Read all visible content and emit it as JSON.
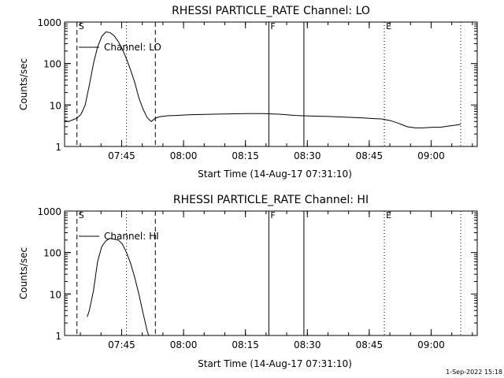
{
  "footer_timestamp": "1-Sep-2022 15:18",
  "chart_data": [
    {
      "type": "line",
      "title": "RHESSI PARTICLE_RATE Channel: LO",
      "xlabel": "Start Time (14-Aug-17 07:31:10)",
      "ylabel": "Counts/sec",
      "yscale": "log",
      "ylim": [
        1,
        1000
      ],
      "xlim_min": [
        0,
        100
      ],
      "x_unit": "minutes after 07:31:10",
      "x_ticks": [
        "07:45",
        "08:00",
        "08:15",
        "08:30",
        "08:45",
        "09:00"
      ],
      "x_tick_min": [
        13.83,
        28.83,
        43.83,
        58.83,
        73.83,
        88.83
      ],
      "y_ticks": [
        "1",
        "10",
        "100",
        "1000"
      ],
      "y_tick_values": [
        1,
        10,
        100,
        1000
      ],
      "legend": "Channel: LO",
      "legend_position": "top-left",
      "markers": [
        {
          "label": "S",
          "x_min": 3,
          "style": "dashed"
        },
        {
          "label": "",
          "x_min": 15,
          "style": "dotted"
        },
        {
          "label": "",
          "x_min": 22,
          "style": "dashed"
        },
        {
          "label": "F",
          "x_min": 49.5,
          "style": "solid"
        },
        {
          "label": "",
          "x_min": 58,
          "style": "solid"
        },
        {
          "label": "E",
          "x_min": 77.5,
          "style": "dotted"
        },
        {
          "label": "",
          "x_min": 96,
          "style": "dotted"
        }
      ],
      "series": [
        {
          "points": [
            [
              0,
              4.2
            ],
            [
              1,
              4.0
            ],
            [
              2,
              4.4
            ],
            [
              3,
              4.8
            ],
            [
              4,
              6
            ],
            [
              5,
              10
            ],
            [
              6,
              30
            ],
            [
              7,
              100
            ],
            [
              8,
              250
            ],
            [
              9,
              450
            ],
            [
              10,
              580
            ],
            [
              11,
              560
            ],
            [
              12,
              470
            ],
            [
              13,
              340
            ],
            [
              14,
              220
            ],
            [
              15,
              130
            ],
            [
              16,
              70
            ],
            [
              17,
              35
            ],
            [
              18,
              15
            ],
            [
              19,
              8
            ],
            [
              20,
              5
            ],
            [
              21,
              4.0
            ],
            [
              22,
              4.8
            ],
            [
              23,
              5.2
            ],
            [
              25,
              5.5
            ],
            [
              27,
              5.6
            ],
            [
              30,
              5.8
            ],
            [
              33,
              5.9
            ],
            [
              36,
              6.0
            ],
            [
              40,
              6.1
            ],
            [
              44,
              6.2
            ],
            [
              48,
              6.2
            ],
            [
              52,
              6.0
            ],
            [
              56,
              5.6
            ],
            [
              60,
              5.4
            ],
            [
              64,
              5.3
            ],
            [
              68,
              5.1
            ],
            [
              72,
              4.9
            ],
            [
              75,
              4.7
            ],
            [
              77,
              4.6
            ],
            [
              79,
              4.2
            ],
            [
              81,
              3.6
            ],
            [
              83,
              3.0
            ],
            [
              85,
              2.8
            ],
            [
              87,
              2.8
            ],
            [
              89,
              2.9
            ],
            [
              91,
              2.9
            ],
            [
              93,
              3.1
            ],
            [
              95,
              3.3
            ],
            [
              96,
              3.4
            ]
          ]
        }
      ]
    },
    {
      "type": "line",
      "title": "RHESSI PARTICLE_RATE Channel: HI",
      "xlabel": "Start Time (14-Aug-17 07:31:10)",
      "ylabel": "Counts/sec",
      "yscale": "log",
      "ylim": [
        1,
        1000
      ],
      "xlim_min": [
        0,
        100
      ],
      "x_unit": "minutes after 07:31:10",
      "x_ticks": [
        "07:45",
        "08:00",
        "08:15",
        "08:30",
        "08:45",
        "09:00"
      ],
      "x_tick_min": [
        13.83,
        28.83,
        43.83,
        58.83,
        73.83,
        88.83
      ],
      "y_ticks": [
        "1",
        "10",
        "100",
        "1000"
      ],
      "y_tick_values": [
        1,
        10,
        100,
        1000
      ],
      "legend": "Channel: HI",
      "legend_position": "top-left",
      "markers": [
        {
          "label": "S",
          "x_min": 3,
          "style": "dashed"
        },
        {
          "label": "",
          "x_min": 15,
          "style": "dotted"
        },
        {
          "label": "",
          "x_min": 22,
          "style": "dashed"
        },
        {
          "label": "F",
          "x_min": 49.5,
          "style": "solid"
        },
        {
          "label": "",
          "x_min": 58,
          "style": "solid"
        },
        {
          "label": "E",
          "x_min": 77.5,
          "style": "dotted"
        },
        {
          "label": "",
          "x_min": 96,
          "style": "dotted"
        }
      ],
      "series": [
        {
          "points": [
            [
              5.5,
              2.8
            ],
            [
              6,
              4
            ],
            [
              7,
              12
            ],
            [
              8,
              60
            ],
            [
              9,
              140
            ],
            [
              10,
              190
            ],
            [
              11,
              220
            ],
            [
              12,
              210
            ],
            [
              13,
              200
            ],
            [
              14,
              160
            ],
            [
              15,
              100
            ],
            [
              16,
              55
            ],
            [
              17,
              25
            ],
            [
              18,
              10
            ],
            [
              19,
              3.5
            ],
            [
              20,
              1.3
            ],
            [
              20.4,
              1
            ]
          ]
        }
      ]
    }
  ]
}
